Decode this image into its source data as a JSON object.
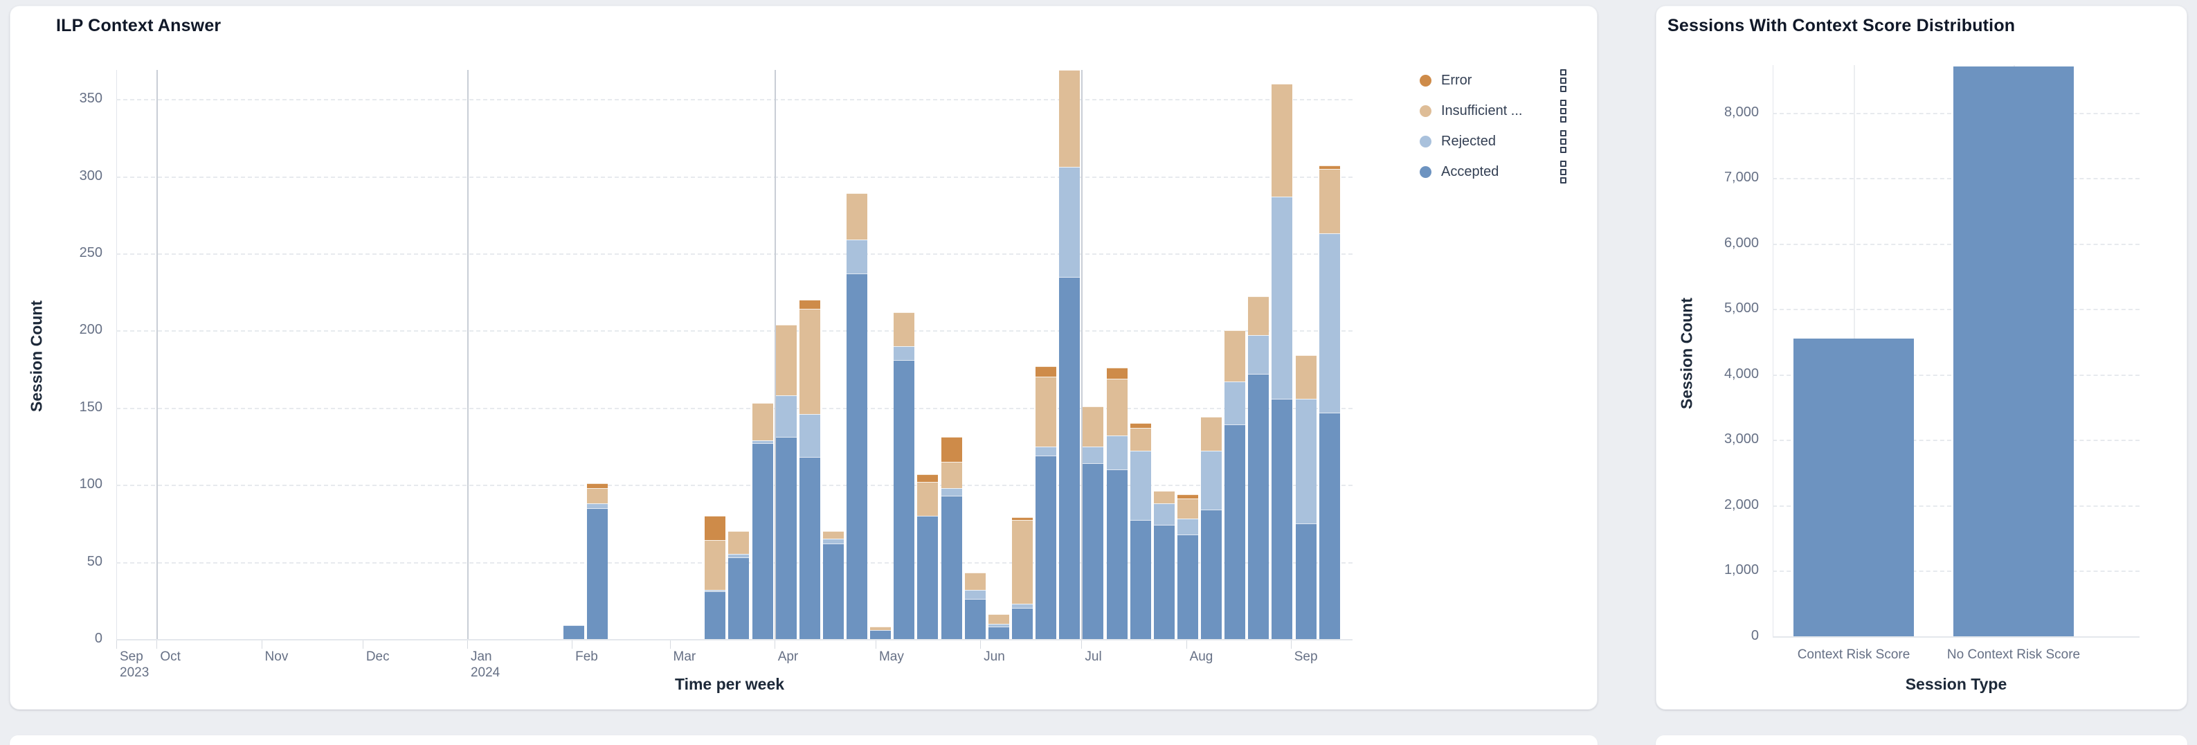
{
  "page": {
    "background_color": "#eceef2",
    "card_color": "#ffffff"
  },
  "left_card": {
    "title": "ILP Context Answer",
    "y_axis_title": "Session Count",
    "x_axis_title": "Time per week"
  },
  "right_card": {
    "title": "Sessions With Context Score Distribution",
    "y_axis_title": "Session Count",
    "x_axis_title": "Session Type"
  },
  "colors": {
    "accepted": "#6d93c0",
    "rejected": "#a9c1dc",
    "insufficient": "#debd97",
    "error": "#ce8b49",
    "tick_text": "#667085",
    "axis_title_text": "#1d2939",
    "title_text": "#101828"
  },
  "chart_data": [
    {
      "type": "bar",
      "stacked": true,
      "title": "ILP Context Answer",
      "xlabel": "Time per week",
      "ylabel": "Session Count",
      "ylim": [
        0,
        369
      ],
      "y_ticks": [
        0,
        50,
        100,
        150,
        200,
        250,
        300,
        350
      ],
      "grid": {
        "horizontal_dashed": true,
        "quarter_vlines": true
      },
      "legend_position": "right",
      "legend": [
        {
          "label": "Error",
          "color": "#ce8b49"
        },
        {
          "label": "Insufficient ...",
          "color": "#debd97"
        },
        {
          "label": "Rejected",
          "color": "#a9c1dc"
        },
        {
          "label": "Accepted",
          "color": "#6d93c0"
        }
      ],
      "x_axis_months": [
        {
          "label": "Sep",
          "sublabel": "2023",
          "day": 0,
          "quarter_line": false
        },
        {
          "label": "Oct",
          "day": 13,
          "quarter_line": true
        },
        {
          "label": "Nov",
          "day": 44,
          "quarter_line": false
        },
        {
          "label": "Dec",
          "day": 74,
          "quarter_line": false
        },
        {
          "label": "Jan",
          "sublabel": "2024",
          "day": 105,
          "quarter_line": true
        },
        {
          "label": "Feb",
          "day": 136,
          "quarter_line": false
        },
        {
          "label": "Mar",
          "day": 165,
          "quarter_line": false
        },
        {
          "label": "Apr",
          "day": 196,
          "quarter_line": true
        },
        {
          "label": "May",
          "day": 226,
          "quarter_line": false
        },
        {
          "label": "Jun",
          "day": 257,
          "quarter_line": false
        },
        {
          "label": "Jul",
          "day": 287,
          "quarter_line": true
        },
        {
          "label": "Aug",
          "day": 318,
          "quarter_line": false
        },
        {
          "label": "Sep",
          "day": 349,
          "quarter_line": false
        }
      ],
      "domain_days": 363,
      "first_week_day_offset": 133,
      "week_step_days": 7,
      "weeks": [
        "2024-01-29",
        "2024-02-05",
        "2024-02-12",
        "2024-02-19",
        "2024-02-26",
        "2024-03-04",
        "2024-03-11",
        "2024-03-18",
        "2024-03-25",
        "2024-04-01",
        "2024-04-08",
        "2024-04-15",
        "2024-04-22",
        "2024-04-29",
        "2024-05-06",
        "2024-05-13",
        "2024-05-20",
        "2024-05-27",
        "2024-06-03",
        "2024-06-10",
        "2024-06-17",
        "2024-06-24",
        "2024-07-01",
        "2024-07-08",
        "2024-07-15",
        "2024-07-22",
        "2024-07-29",
        "2024-08-05",
        "2024-08-12",
        "2024-08-19",
        "2024-08-26",
        "2024-09-02",
        "2024-09-09"
      ],
      "series": [
        {
          "name": "Accepted",
          "color": "#6d93c0",
          "values": [
            9,
            85,
            0,
            0,
            0,
            0,
            31,
            53,
            127,
            131,
            118,
            62,
            237,
            6,
            181,
            80,
            93,
            26,
            8,
            20,
            119,
            235,
            114,
            110,
            77,
            74,
            68,
            84,
            139,
            172,
            156,
            75,
            147
          ]
        },
        {
          "name": "Rejected",
          "color": "#a9c1dc",
          "values": [
            0,
            3,
            0,
            0,
            0,
            0,
            1,
            2,
            2,
            27,
            28,
            3,
            22,
            0,
            9,
            0,
            5,
            6,
            2,
            3,
            6,
            71,
            11,
            22,
            45,
            14,
            10,
            38,
            28,
            25,
            131,
            81,
            116
          ]
        },
        {
          "name": "Insufficient ...",
          "color": "#debd97",
          "values": [
            0,
            10,
            0,
            0,
            0,
            0,
            32,
            15,
            24,
            46,
            68,
            5,
            30,
            2,
            22,
            22,
            17,
            11,
            6,
            54,
            45,
            63,
            26,
            37,
            15,
            8,
            13,
            22,
            33,
            25,
            73,
            28,
            42
          ]
        },
        {
          "name": "Error",
          "color": "#ce8b49",
          "values": [
            0,
            3,
            0,
            0,
            0,
            0,
            16,
            0,
            0,
            0,
            6,
            0,
            0,
            0,
            0,
            5,
            16,
            0,
            0,
            2,
            7,
            0,
            0,
            7,
            3,
            0,
            3,
            0,
            0,
            0,
            0,
            0,
            2
          ]
        }
      ]
    },
    {
      "type": "bar",
      "stacked": false,
      "title": "Sessions With Context Score Distribution",
      "xlabel": "Session Type",
      "ylabel": "Session Count",
      "categories": [
        "Context Risk Score",
        "No Context Risk Score"
      ],
      "values": [
        4550,
        8700
      ],
      "ylim": [
        0,
        8725
      ],
      "y_ticks": [
        0,
        1000,
        2000,
        3000,
        4000,
        5000,
        6000,
        7000,
        8000
      ],
      "bar_color": "#6d93c0",
      "grid": {
        "horizontal_dashed": true,
        "category_vlines": true
      }
    }
  ]
}
